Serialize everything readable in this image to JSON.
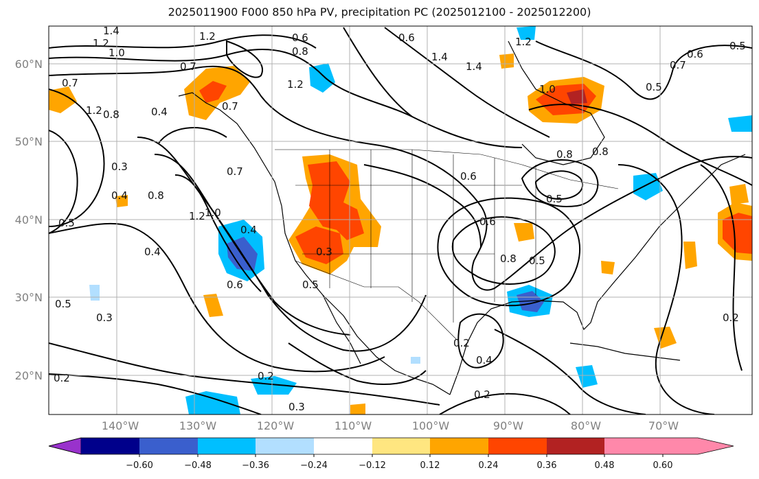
{
  "title": "2025011900 F000 850 hPa PV, precipitation PC (2025012100 - 2025012200)",
  "lat_labels": [
    "60°N",
    "50°N",
    "40°N",
    "30°N",
    "20°N"
  ],
  "lon_labels": [
    "140°W",
    "130°W",
    "120°W",
    "110°W",
    "100°W",
    "90°W",
    "80°W",
    "70°W"
  ],
  "colorbar": {
    "colors": [
      "#9932cc",
      "#00008b",
      "#3a5fcd",
      "#00bfff",
      "#b2dfff",
      "#ffffff",
      "#ffe680",
      "#ffa500",
      "#ff4500",
      "#b22222",
      "#ff88aa"
    ],
    "tick_labels": [
      "−0.60",
      "−0.48",
      "−0.36",
      "−0.24",
      "−0.12",
      "0.12",
      "0.24",
      "0.36",
      "0.48",
      "0.60"
    ]
  },
  "contour_labels": [
    "1.4",
    "1.2",
    "1.0",
    "0.7",
    "0.6",
    "0.8",
    "1.2",
    "1.4",
    "1.2",
    "0.5",
    "0.6",
    "0.7",
    "0.7",
    "1.4",
    "1.2",
    "1.0",
    "0.8",
    "0.4",
    "0.3",
    "0.4",
    "0.8",
    "0.7",
    "1.2",
    "1.0",
    "0.5",
    "0.4",
    "0.6",
    "0.5",
    "0.3",
    "0.6",
    "0.6",
    "0.8",
    "0.5",
    "0.5",
    "0.5",
    "0.3",
    "0.2",
    "0.4",
    "0.2",
    "0.2",
    "0.2",
    "0.3",
    "0.2",
    "0.5",
    "0.8",
    "0.7",
    "1.2",
    "0.6",
    "0.8",
    "0.4"
  ]
}
